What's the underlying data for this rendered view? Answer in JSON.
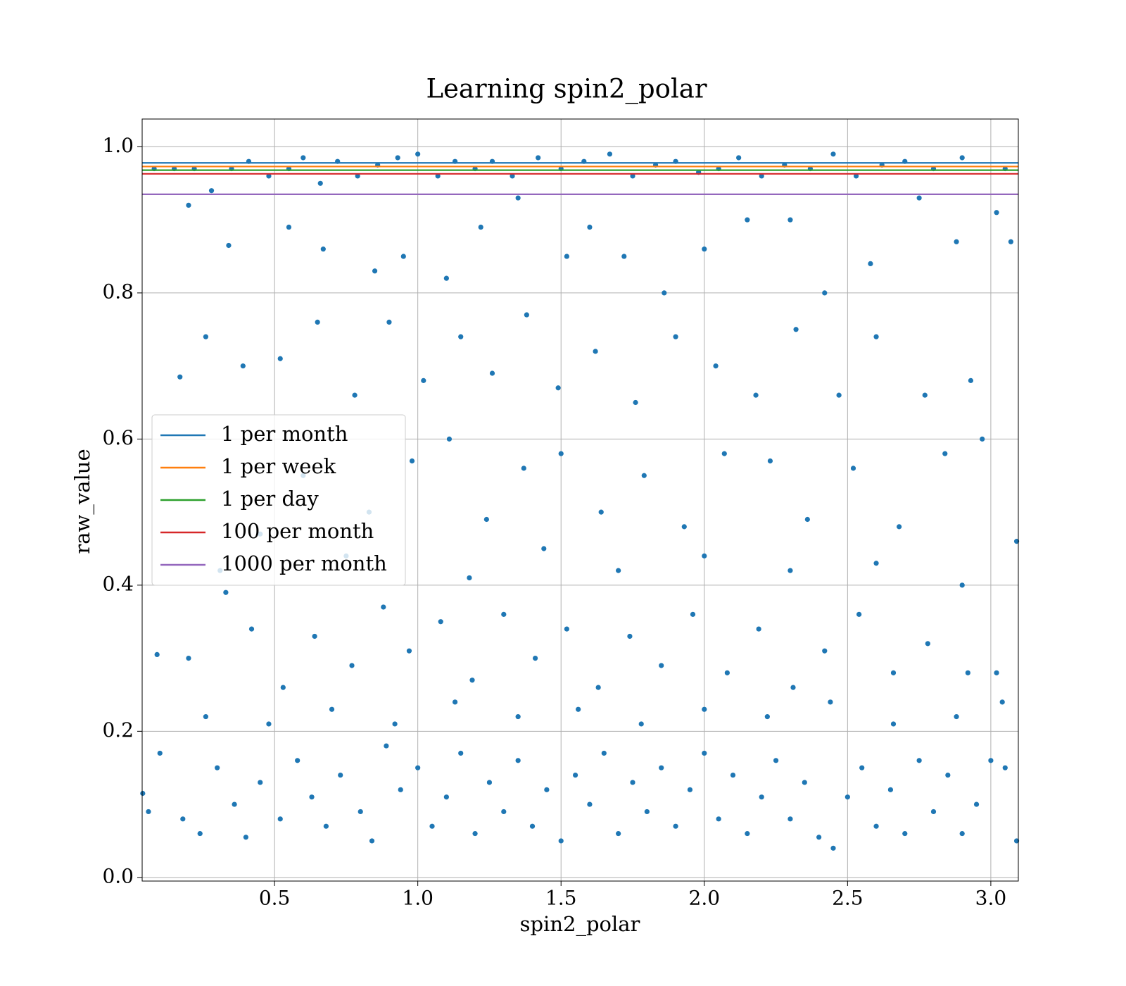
{
  "chart_data": {
    "type": "scatter",
    "title": "Learning spin2_polar",
    "x_label": "spin2_polar",
    "y_label": "raw_value",
    "color": "#1f77b4",
    "x": [
      0.08,
      0.15,
      0.22,
      0.28,
      0.35,
      0.41,
      0.48,
      0.55,
      0.6,
      0.66,
      0.72,
      0.79,
      0.86,
      0.93,
      1.0,
      1.07,
      1.13,
      1.2,
      1.26,
      1.33,
      1.42,
      1.5,
      1.58,
      1.67,
      1.75,
      1.83,
      1.9,
      1.98,
      2.05,
      2.12,
      2.2,
      2.28,
      2.37,
      2.45,
      2.53,
      2.62,
      2.7,
      2.8,
      2.9,
      3.05,
      0.2,
      0.34,
      0.55,
      0.67,
      0.85,
      0.95,
      1.1,
      1.22,
      1.35,
      1.52,
      1.6,
      1.72,
      1.86,
      2.0,
      2.15,
      2.3,
      2.42,
      2.58,
      2.75,
      2.88,
      3.02,
      3.07,
      0.17,
      0.26,
      0.39,
      0.52,
      0.65,
      0.78,
      0.9,
      1.02,
      1.15,
      1.26,
      1.38,
      1.49,
      1.62,
      1.76,
      1.9,
      2.04,
      2.18,
      2.32,
      2.47,
      2.6,
      2.77,
      2.93,
      0.45,
      0.6,
      0.83,
      0.98,
      1.11,
      1.24,
      1.37,
      1.5,
      1.64,
      1.79,
      1.93,
      2.07,
      2.23,
      2.36,
      2.52,
      2.68,
      2.84,
      2.97,
      3.09,
      0.31,
      0.75,
      1.18,
      1.44,
      1.7,
      2.0,
      2.3,
      2.6,
      2.9,
      0.09,
      0.2,
      0.33,
      0.42,
      0.53,
      0.64,
      0.77,
      0.88,
      0.97,
      1.08,
      1.19,
      1.3,
      1.41,
      1.52,
      1.63,
      1.74,
      1.85,
      1.96,
      2.08,
      2.19,
      2.31,
      2.42,
      2.54,
      2.66,
      2.78,
      2.92,
      3.02,
      0.26,
      0.48,
      0.7,
      0.92,
      1.13,
      1.35,
      1.56,
      1.78,
      2.0,
      2.22,
      2.44,
      2.66,
      2.88,
      3.04,
      0.04,
      0.06,
      0.1,
      0.18,
      0.24,
      0.3,
      0.36,
      0.4,
      0.45,
      0.52,
      0.58,
      0.63,
      0.68,
      0.73,
      0.8,
      0.84,
      0.89,
      0.94,
      1.0,
      1.05,
      1.1,
      1.15,
      1.2,
      1.25,
      1.3,
      1.35,
      1.4,
      1.45,
      1.5,
      1.55,
      1.6,
      1.65,
      1.7,
      1.75,
      1.8,
      1.85,
      1.9,
      1.95,
      2.0,
      2.05,
      2.1,
      2.15,
      2.2,
      2.25,
      2.3,
      2.35,
      2.4,
      2.45,
      2.5,
      2.55,
      2.6,
      2.65,
      2.7,
      2.75,
      2.8,
      2.85,
      2.9,
      2.95,
      3.0,
      3.05,
      3.09
    ],
    "values": [
      0.97,
      0.97,
      0.97,
      0.94,
      0.97,
      0.98,
      0.96,
      0.97,
      0.985,
      0.95,
      0.98,
      0.96,
      0.975,
      0.985,
      0.99,
      0.96,
      0.98,
      0.97,
      0.98,
      0.96,
      0.985,
      0.97,
      0.98,
      0.99,
      0.96,
      0.975,
      0.98,
      0.965,
      0.97,
      0.985,
      0.96,
      0.975,
      0.97,
      0.99,
      0.96,
      0.975,
      0.98,
      0.97,
      0.985,
      0.97,
      0.92,
      0.865,
      0.89,
      0.86,
      0.83,
      0.85,
      0.82,
      0.89,
      0.93,
      0.85,
      0.89,
      0.85,
      0.8,
      0.86,
      0.9,
      0.9,
      0.8,
      0.84,
      0.93,
      0.87,
      0.91,
      0.87,
      0.685,
      0.74,
      0.7,
      0.71,
      0.76,
      0.66,
      0.76,
      0.68,
      0.74,
      0.69,
      0.77,
      0.67,
      0.72,
      0.65,
      0.74,
      0.7,
      0.66,
      0.75,
      0.66,
      0.74,
      0.66,
      0.68,
      0.47,
      0.55,
      0.5,
      0.57,
      0.6,
      0.49,
      0.56,
      0.58,
      0.5,
      0.55,
      0.48,
      0.58,
      0.57,
      0.49,
      0.56,
      0.48,
      0.58,
      0.6,
      0.46,
      0.42,
      0.44,
      0.41,
      0.45,
      0.42,
      0.44,
      0.42,
      0.43,
      0.4,
      0.305,
      0.3,
      0.39,
      0.34,
      0.26,
      0.33,
      0.29,
      0.37,
      0.31,
      0.35,
      0.27,
      0.36,
      0.3,
      0.34,
      0.26,
      0.33,
      0.29,
      0.36,
      0.28,
      0.34,
      0.26,
      0.31,
      0.36,
      0.28,
      0.32,
      0.28,
      0.28,
      0.22,
      0.21,
      0.23,
      0.21,
      0.24,
      0.22,
      0.23,
      0.21,
      0.23,
      0.22,
      0.24,
      0.21,
      0.22,
      0.24,
      0.115,
      0.09,
      0.17,
      0.08,
      0.06,
      0.15,
      0.1,
      0.055,
      0.13,
      0.08,
      0.16,
      0.11,
      0.07,
      0.14,
      0.09,
      0.05,
      0.18,
      0.12,
      0.15,
      0.07,
      0.11,
      0.17,
      0.06,
      0.13,
      0.09,
      0.16,
      0.07,
      0.12,
      0.05,
      0.14,
      0.1,
      0.17,
      0.06,
      0.13,
      0.09,
      0.15,
      0.07,
      0.12,
      0.17,
      0.08,
      0.14,
      0.06,
      0.11,
      0.16,
      0.08,
      0.13,
      0.055,
      0.04,
      0.11,
      0.15,
      0.07,
      0.12,
      0.06,
      0.16,
      0.09,
      0.14,
      0.06,
      0.1,
      0.16,
      0.15,
      0.05
    ],
    "hlines": [
      {
        "name": "1 per month",
        "color": "#1f77b4",
        "value": 0.978
      },
      {
        "name": "1 per week",
        "color": "#ff7f0e",
        "value": 0.973
      },
      {
        "name": "1 per day",
        "color": "#2ca02c",
        "value": 0.968
      },
      {
        "name": "100 per month",
        "color": "#d62728",
        "value": 0.963
      },
      {
        "name": "1000 per month",
        "color": "#9467bd",
        "value": 0.935
      }
    ],
    "xlim": [
      0.038,
      3.096
    ],
    "ylim": [
      -0.005,
      1.038
    ],
    "xticks": [
      0.5,
      {
        "value": 1,
        "label": "1.0"
      },
      1.5,
      {
        "value": 2,
        "label": "2.0"
      },
      2.5,
      {
        "value": 3,
        "label": "3.0"
      }
    ],
    "yticks": [
      {
        "value": 0,
        "label": "0.0"
      },
      0.2,
      0.4,
      0.6,
      0.8,
      {
        "value": 1,
        "label": "1.0"
      }
    ],
    "grid": true,
    "legend": "center left"
  }
}
